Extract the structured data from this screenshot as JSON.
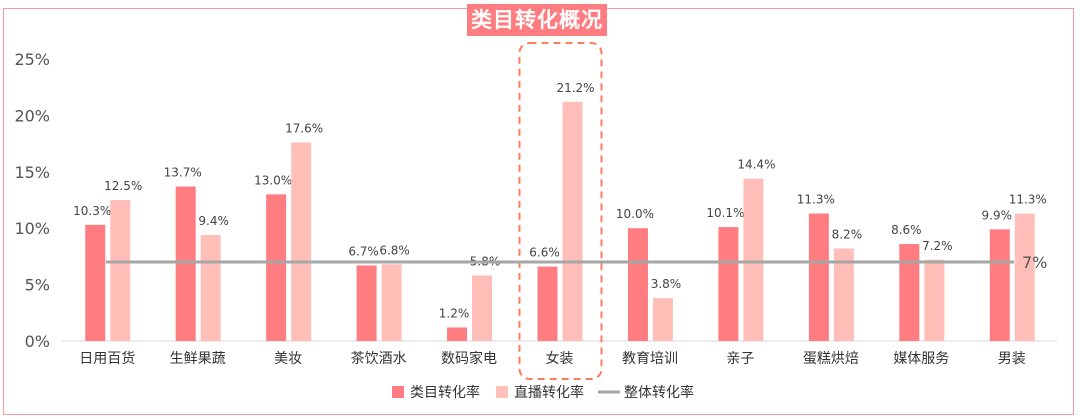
{
  "title": "类目转化概况",
  "colors": {
    "category": "#ff7c80",
    "live": "#ffbfb8",
    "overall": "#a6a6a6",
    "highlight": "#ff7c60",
    "frame": "#f4989f"
  },
  "chart_data": {
    "type": "bar",
    "categories": [
      "日用百货",
      "生鲜果蔬",
      "美妆",
      "茶饮酒水",
      "数码家电",
      "女装",
      "教育培训",
      "亲子",
      "蛋糕烘焙",
      "媒体服务",
      "男装"
    ],
    "series": [
      {
        "name": "类目转化率",
        "values": [
          10.3,
          13.7,
          13.0,
          6.7,
          1.2,
          6.6,
          10.0,
          10.1,
          11.3,
          8.6,
          9.9
        ],
        "labels": [
          "10.3%",
          "13.7%",
          "13.0%",
          "6.7%",
          "1.2%",
          "6.6%",
          "10.0%",
          "10.1%",
          "11.3%",
          "8.6%",
          "9.9%"
        ]
      },
      {
        "name": "直播转化率",
        "values": [
          12.5,
          9.4,
          17.6,
          6.8,
          5.8,
          21.2,
          3.8,
          14.4,
          8.2,
          7.2,
          11.3
        ],
        "labels": [
          "12.5%",
          "9.4%",
          "17.6%",
          "6.8%",
          "5.8%",
          "21.2%",
          "3.8%",
          "14.4%",
          "8.2%",
          "7.2%",
          "11.3%"
        ]
      }
    ],
    "reference_line": {
      "name": "整体转化率",
      "value": 7,
      "label": "7%"
    },
    "ylim": [
      0,
      25
    ],
    "yticks": [
      0,
      5,
      10,
      15,
      20,
      25
    ],
    "ytick_labels": [
      "0%",
      "5%",
      "10%",
      "15%",
      "20%",
      "25%"
    ],
    "highlight_category": "女装",
    "legend_position": "bottom"
  }
}
